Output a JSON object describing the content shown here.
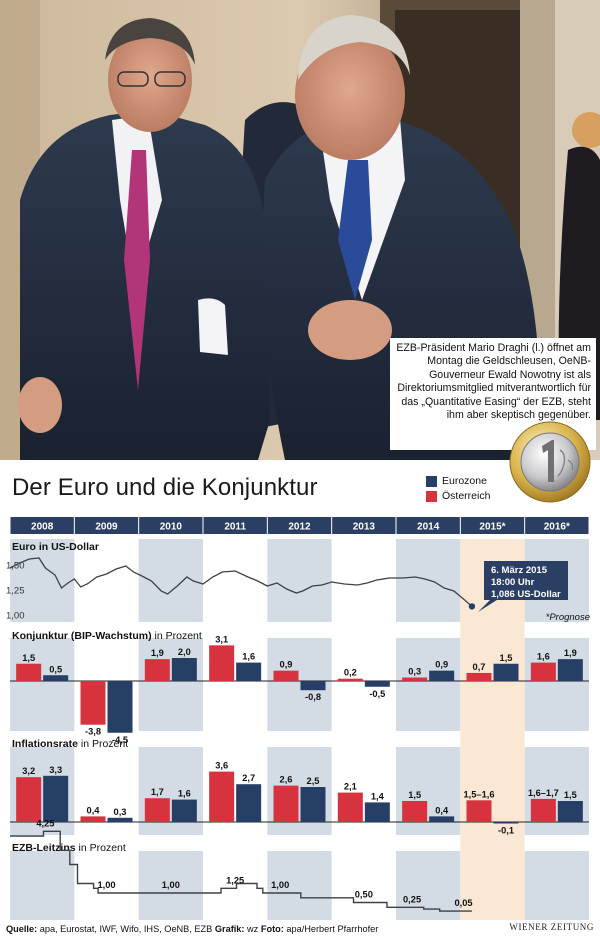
{
  "photo": {
    "icon": "press-photo-two-men-in-suits",
    "caption": "EZB-Präsident Mario Draghi (l.) öffnet am Montag die Geldschleusen, OeNB-Gouverneur Ewald Nowotny ist als Direktoriumsmitglied mitverantwortlich für das „Quantitative Easing“ der EZB, steht ihm aber skeptisch gegenüber."
  },
  "coin_icon": "one-euro-coin-icon",
  "title": "Der Euro und die Konjunktur",
  "legend": [
    {
      "label": "Eurozone",
      "color": "#253f66"
    },
    {
      "label": "Österreich",
      "color": "#d6333e"
    }
  ],
  "colors": {
    "eurozone": "#253f66",
    "austria": "#d6333e",
    "header": "#2a3f63",
    "band": "#d3dbe5",
    "forecast": "#fbe8d4"
  },
  "chart_data": [
    {
      "type": "line",
      "title": "Euro in US-Dollar",
      "years": [
        "2008",
        "2009",
        "2010",
        "2011",
        "2012",
        "2013",
        "2014",
        "2015*",
        "2016*"
      ],
      "yticks": [
        "1,50",
        "1,25",
        "1,00"
      ],
      "ylim": [
        1.0,
        1.6
      ],
      "x": [
        2008.0,
        2008.15,
        2008.3,
        2008.45,
        2008.55,
        2008.7,
        2008.8,
        2008.9,
        2009.0,
        2009.1,
        2009.2,
        2009.35,
        2009.5,
        2009.65,
        2009.8,
        2009.92,
        2010.05,
        2010.2,
        2010.35,
        2010.45,
        2010.6,
        2010.75,
        2010.85,
        2011.0,
        2011.15,
        2011.3,
        2011.5,
        2011.7,
        2011.85,
        2012.0,
        2012.15,
        2012.3,
        2012.45,
        2012.55,
        2012.7,
        2012.85,
        2013.0,
        2013.2,
        2013.4,
        2013.55,
        2013.7,
        2013.9,
        2014.1,
        2014.3,
        2014.45,
        2014.6,
        2014.75,
        2014.9,
        2015.05,
        2015.18
      ],
      "values": [
        1.47,
        1.52,
        1.56,
        1.57,
        1.47,
        1.4,
        1.27,
        1.32,
        1.36,
        1.28,
        1.31,
        1.38,
        1.41,
        1.46,
        1.49,
        1.43,
        1.39,
        1.34,
        1.24,
        1.21,
        1.29,
        1.38,
        1.34,
        1.31,
        1.38,
        1.43,
        1.44,
        1.38,
        1.34,
        1.29,
        1.32,
        1.26,
        1.22,
        1.24,
        1.29,
        1.3,
        1.33,
        1.31,
        1.3,
        1.32,
        1.35,
        1.37,
        1.37,
        1.38,
        1.36,
        1.33,
        1.27,
        1.24,
        1.16,
        1.086
      ],
      "annotation": {
        "date": "6. März 2015",
        "time": "18:00 Uhr",
        "value": "1,086 US-Dollar"
      },
      "note": "*Prognose"
    },
    {
      "type": "bar",
      "title": "Konjunktur (BIP-Wachstum)",
      "unit": "in Prozent",
      "categories": [
        "2008",
        "2009",
        "2010",
        "2011",
        "2012",
        "2013",
        "2014",
        "2015*",
        "2016*"
      ],
      "series": [
        {
          "name": "Österreich",
          "values": [
            1.5,
            -3.8,
            1.9,
            3.1,
            0.9,
            0.2,
            0.3,
            0.7,
            1.6
          ]
        },
        {
          "name": "Eurozone",
          "values": [
            0.5,
            -4.5,
            2.0,
            1.6,
            -0.8,
            -0.5,
            0.9,
            1.5,
            1.9
          ]
        }
      ],
      "labels": {
        "Österreich": [
          "1,5",
          "-3,8",
          "1,9",
          "3,1",
          "0,9",
          "0,2",
          "0,3",
          "0,7",
          "1,6"
        ],
        "Eurozone": [
          "0,5",
          "-4,5",
          "2,0",
          "1,6",
          "-0,8",
          "-0,5",
          "0,9",
          "1,5",
          "1,9"
        ]
      }
    },
    {
      "type": "bar",
      "title": "Inflationsrate",
      "unit": "in Prozent",
      "categories": [
        "2008",
        "2009",
        "2010",
        "2011",
        "2012",
        "2013",
        "2014",
        "2015*",
        "2016*"
      ],
      "series": [
        {
          "name": "Österreich",
          "values": [
            3.2,
            0.4,
            1.7,
            3.6,
            2.6,
            2.1,
            1.5,
            1.55,
            1.65
          ]
        },
        {
          "name": "Eurozone",
          "values": [
            3.3,
            0.3,
            1.6,
            2.7,
            2.5,
            1.4,
            0.4,
            -0.1,
            1.5
          ]
        }
      ],
      "labels": {
        "Österreich": [
          "3,2",
          "0,4",
          "1,7",
          "3,6",
          "2,6",
          "2,1",
          "1,5",
          "1,5–1,6",
          "1,6–1,7"
        ],
        "Eurozone": [
          "3,3",
          "0,3",
          "1,6",
          "2,7",
          "2,5",
          "1,4",
          "0,4",
          "-0,1",
          "1,5"
        ]
      }
    },
    {
      "type": "line",
      "title": "EZB-Leitzins",
      "unit": "in Prozent",
      "x": [
        2008.0,
        2008.52,
        2008.52,
        2008.78,
        2008.78,
        2008.93,
        2008.93,
        2009.05,
        2009.05,
        2009.3,
        2009.3,
        2009.37,
        2009.37,
        2011.28,
        2011.28,
        2011.52,
        2011.52,
        2011.84,
        2011.84,
        2011.93,
        2011.93,
        2012.52,
        2012.52,
        2013.34,
        2013.34,
        2013.86,
        2013.86,
        2014.43,
        2014.43,
        2014.68,
        2014.68,
        2015.18
      ],
      "values": [
        4.0,
        4.0,
        4.25,
        4.25,
        3.25,
        3.25,
        2.5,
        2.5,
        1.5,
        1.5,
        1.25,
        1.25,
        1.0,
        1.0,
        1.25,
        1.25,
        1.5,
        1.5,
        1.25,
        1.25,
        1.0,
        1.0,
        0.75,
        0.75,
        0.5,
        0.5,
        0.25,
        0.25,
        0.15,
        0.15,
        0.05,
        0.05
      ],
      "ylim": [
        0,
        5.2
      ],
      "point_labels": [
        {
          "x": 2008.55,
          "text": "4,25"
        },
        {
          "x": 2009.5,
          "text": "1,00"
        },
        {
          "x": 2010.5,
          "text": "1,00"
        },
        {
          "x": 2011.5,
          "text": "1,25"
        },
        {
          "x": 2012.2,
          "text": "1,00"
        },
        {
          "x": 2013.5,
          "text": "0,50"
        },
        {
          "x": 2014.25,
          "text": "0,25"
        },
        {
          "x": 2015.05,
          "text": "0,05"
        }
      ]
    }
  ],
  "footer": {
    "source_label": "Quelle:",
    "source_text": "apa, Eurostat, IWF, Wifo, IHS, OeNB, EZB",
    "graphic_label": "Grafik:",
    "graphic_text": "wz",
    "photo_label": "Foto:",
    "photo_text": "apa/Herbert Pfarrhofer",
    "brand": "WIENER ZEITUNG"
  }
}
